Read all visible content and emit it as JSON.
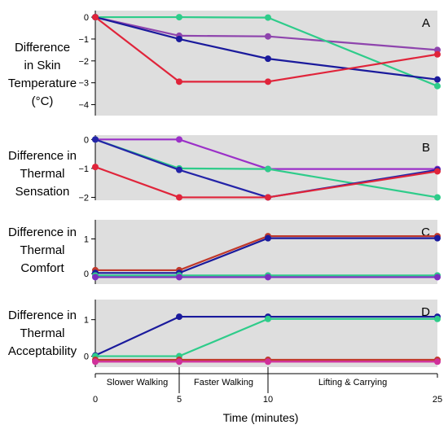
{
  "chart_data": [
    {
      "type": "line",
      "panel_label": "A",
      "title": "Difference in Skin Temperature (°C)",
      "title_lines": [
        "Difference",
        "in Skin",
        "Temperature",
        "(°C)"
      ],
      "x": [
        0,
        5,
        10,
        25
      ],
      "ylim": [
        -4.5,
        0.3
      ],
      "yticks": [
        "0",
        "−1",
        "−2",
        "−3",
        "−4"
      ],
      "ytick_values": [
        0,
        -1,
        -2,
        -3,
        -4
      ],
      "series": [
        {
          "color": "#8e44ad",
          "values": [
            0,
            -0.85,
            -0.88,
            -1.5
          ]
        },
        {
          "color": "#2ecc8a",
          "values": [
            0,
            0,
            -0.02,
            -3.15
          ]
        },
        {
          "color": "#1a1a9c",
          "values": [
            0,
            -1.0,
            -1.9,
            -2.85
          ]
        },
        {
          "color": "#e0243a",
          "values": [
            0,
            -2.95,
            -2.95,
            -1.7
          ]
        }
      ]
    },
    {
      "type": "line",
      "panel_label": "B",
      "title": "Difference in Thermal Sensation",
      "title_lines": [
        "Difference in",
        "Thermal",
        "Sensation"
      ],
      "x": [
        0,
        5,
        10,
        25
      ],
      "ylim": [
        -2.1,
        0.15
      ],
      "yticks": [
        "0",
        "−1",
        "−2"
      ],
      "ytick_values": [
        0,
        -1,
        -2
      ],
      "series": [
        {
          "color": "#9b30c8",
          "values": [
            0,
            0,
            -1.02,
            -1.02
          ]
        },
        {
          "color": "#2ecc8a",
          "values": [
            0,
            -1.0,
            -1.02,
            -2.0
          ]
        },
        {
          "color": "#2424a8",
          "values": [
            0,
            -1.05,
            -2.0,
            -1.05
          ]
        },
        {
          "color": "#e0243a",
          "values": [
            -0.95,
            -2.0,
            -2.0,
            -1.1
          ]
        }
      ]
    },
    {
      "type": "line",
      "panel_label": "C",
      "title": "Difference in Thermal Comfort",
      "title_lines": [
        "Difference in",
        "Thermal",
        "Comfort"
      ],
      "x": [
        0,
        5,
        10,
        25
      ],
      "ylim": [
        -0.3,
        1.55
      ],
      "yticks": [
        "1",
        "0"
      ],
      "ytick_values": [
        1,
        0
      ],
      "series": [
        {
          "color": "#c0392b",
          "values": [
            0.1,
            0.1,
            1.08,
            1.08
          ]
        },
        {
          "color": "#1a1a9c",
          "values": [
            0.02,
            0.02,
            1.02,
            1.02
          ]
        },
        {
          "color": "#2ecc8a",
          "values": [
            -0.05,
            -0.05,
            -0.05,
            -0.05
          ]
        },
        {
          "color": "#7b2fbf",
          "values": [
            -0.1,
            -0.1,
            -0.1,
            -0.1
          ]
        }
      ]
    },
    {
      "type": "line",
      "panel_label": "D",
      "title": "Difference in Thermal Acceptability",
      "title_lines": [
        "Difference in",
        "Thermal",
        "Acceptability"
      ],
      "x": [
        0,
        5,
        10,
        25
      ],
      "ylim": [
        -0.3,
        1.55
      ],
      "yticks": [
        "1",
        "0"
      ],
      "ytick_values": [
        1,
        0
      ],
      "series": [
        {
          "color": "#1a1a9c",
          "values": [
            0.02,
            1.08,
            1.08,
            1.08
          ]
        },
        {
          "color": "#2ecc8a",
          "values": [
            0,
            0,
            1.02,
            1.02
          ]
        },
        {
          "color": "#c0392b",
          "values": [
            -0.1,
            -0.1,
            -0.1,
            -0.1
          ]
        },
        {
          "color": "#d0309a",
          "values": [
            -0.15,
            -0.15,
            -0.15,
            -0.15
          ]
        }
      ]
    }
  ],
  "x_axis": {
    "label": "Time (minutes)",
    "ticks": [
      0,
      5,
      10,
      25
    ],
    "tick_labels": [
      "0",
      "5",
      "10",
      "25"
    ],
    "segments": [
      "Slower Walking",
      "Faster Walking",
      "Lifting & Carrying"
    ]
  },
  "colors": {
    "panel_background": "#dedede"
  }
}
